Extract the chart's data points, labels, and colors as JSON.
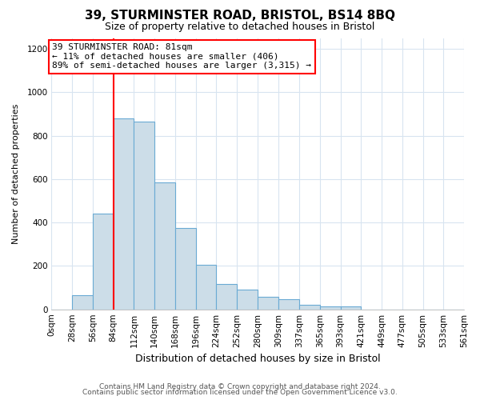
{
  "title": "39, STURMINSTER ROAD, BRISTOL, BS14 8BQ",
  "subtitle": "Size of property relative to detached houses in Bristol",
  "xlabel": "Distribution of detached houses by size in Bristol",
  "ylabel": "Number of detached properties",
  "bin_labels": [
    "0sqm",
    "28sqm",
    "56sqm",
    "84sqm",
    "112sqm",
    "140sqm",
    "168sqm",
    "196sqm",
    "224sqm",
    "252sqm",
    "280sqm",
    "309sqm",
    "337sqm",
    "365sqm",
    "393sqm",
    "421sqm",
    "449sqm",
    "477sqm",
    "505sqm",
    "533sqm",
    "561sqm"
  ],
  "bin_edges": [
    0,
    28,
    56,
    84,
    112,
    140,
    168,
    196,
    224,
    252,
    280,
    309,
    337,
    365,
    393,
    421,
    449,
    477,
    505,
    533,
    561
  ],
  "bar_heights": [
    0,
    65,
    440,
    880,
    865,
    585,
    375,
    205,
    115,
    90,
    58,
    45,
    22,
    15,
    15,
    0,
    0,
    0,
    0,
    0
  ],
  "bar_color": "#ccdde8",
  "bar_edge_color": "#6aaad4",
  "vline_x": 84,
  "vline_color": "red",
  "annotation_text": "39 STURMINSTER ROAD: 81sqm\n← 11% of detached houses are smaller (406)\n89% of semi-detached houses are larger (3,315) →",
  "annotation_box_facecolor": "white",
  "annotation_box_edgecolor": "red",
  "ylim": [
    0,
    1250
  ],
  "yticks": [
    0,
    200,
    400,
    600,
    800,
    1000,
    1200
  ],
  "background_color": "#ffffff",
  "plot_bg_color": "#ffffff",
  "grid_color": "#d8e4f0",
  "footer_line1": "Contains HM Land Registry data © Crown copyright and database right 2024.",
  "footer_line2": "Contains public sector information licensed under the Open Government Licence v3.0.",
  "title_fontsize": 11,
  "subtitle_fontsize": 9,
  "xlabel_fontsize": 9,
  "ylabel_fontsize": 8,
  "tick_fontsize": 7.5,
  "footer_fontsize": 6.5,
  "annotation_fontsize": 8
}
